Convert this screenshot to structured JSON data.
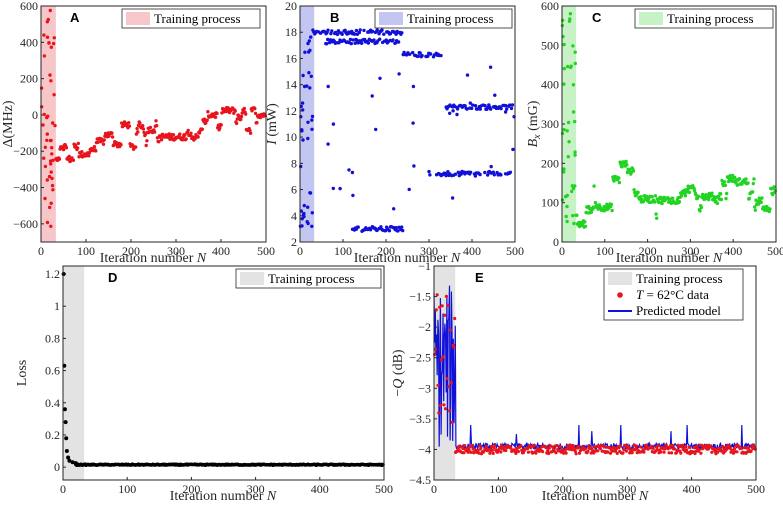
{
  "figure": {
    "panels": {
      "A": {
        "letter": "A",
        "legend": "Training process",
        "xlabel": "Iteration number N",
        "ylabel": "Δ(MHz)"
      },
      "B": {
        "letter": "B",
        "legend": "Training process",
        "xlabel": "Iteration number N",
        "ylabel": "I (mW)"
      },
      "C": {
        "letter": "C",
        "legend": "Training process",
        "xlabel": "Iteration number N",
        "ylabel": "Bx (mG)"
      },
      "D": {
        "letter": "D",
        "legend": "Training process",
        "xlabel": "Iteration number N",
        "ylabel": "Loss"
      },
      "E": {
        "letter": "E",
        "legend": "Training process",
        "legend_data": "T = 62°C data",
        "legend_model": "Predicted model",
        "xlabel": "Iteration number N",
        "ylabel": "−Q (dB)"
      }
    }
  },
  "chart_data": [
    {
      "panel": "A",
      "type": "scatter",
      "xlabel": "Iteration number N",
      "ylabel": "Δ(MHz)",
      "xlim": [
        0,
        500
      ],
      "ylim": [
        -700,
        600
      ],
      "xticks": [
        0,
        100,
        200,
        300,
        400,
        500
      ],
      "yticks": [
        -600,
        -400,
        -200,
        0,
        200,
        400,
        600
      ],
      "shade": [
        0,
        33
      ],
      "shade_label": "Training process",
      "color": "#e8141c",
      "shade_color": "#f7c6c8",
      "series": [
        {
          "name": "training",
          "x_range": [
            1,
            32
          ],
          "y_range": [
            -620,
            580
          ],
          "count": 45
        },
        {
          "name": "optimization",
          "trend": [
            [
              33,
              -250
            ],
            [
              100,
              -140
            ],
            [
              200,
              -120
            ],
            [
              300,
              -90
            ],
            [
              400,
              -40
            ],
            [
              500,
              -40
            ]
          ],
          "spread": 140,
          "count": 300
        }
      ]
    },
    {
      "panel": "B",
      "type": "scatter",
      "xlabel": "Iteration number N",
      "ylabel": "I (mW)",
      "xlim": [
        0,
        500
      ],
      "ylim": [
        2,
        20
      ],
      "xticks": [
        0,
        100,
        200,
        300,
        400,
        500
      ],
      "yticks": [
        2,
        4,
        6,
        8,
        10,
        12,
        14,
        16,
        18,
        20
      ],
      "shade": [
        0,
        33
      ],
      "shade_label": "Training process",
      "color": "#1010d8",
      "shade_color": "#c4c6f2",
      "series": [
        {
          "name": "level-18",
          "x_range": [
            30,
            240
          ],
          "y_value": 18
        },
        {
          "name": "level-17",
          "x_range": [
            60,
            230
          ],
          "y_value": 17.3
        },
        {
          "name": "level-16",
          "x_range": [
            240,
            330
          ],
          "y_value": 16.3
        },
        {
          "name": "level-12",
          "x_range": [
            340,
            500
          ],
          "y_value": 12.3
        },
        {
          "name": "level-7",
          "x_range": [
            300,
            500
          ],
          "y_value": 7.2
        },
        {
          "name": "level-3",
          "x_range": [
            120,
            240
          ],
          "y_value": 3
        }
      ]
    },
    {
      "panel": "C",
      "type": "scatter",
      "xlabel": "Iteration number N",
      "ylabel": "Bx (mG)",
      "xlim": [
        0,
        500
      ],
      "ylim": [
        0,
        600
      ],
      "xticks": [
        0,
        100,
        200,
        300,
        400,
        500
      ],
      "yticks": [
        0,
        100,
        200,
        300,
        400,
        500,
        600
      ],
      "shade": [
        0,
        33
      ],
      "shade_label": "Training process",
      "color": "#22d422",
      "shade_color": "#c6f2c6",
      "series": [
        {
          "name": "training",
          "x_range": [
            1,
            32
          ],
          "y_range": [
            30,
            600
          ],
          "count": 40
        },
        {
          "name": "optimization",
          "trend": [
            [
              33,
              60
            ],
            [
              100,
              130
            ],
            [
              150,
              200
            ],
            [
              200,
              90
            ],
            [
              300,
              110
            ],
            [
              400,
              140
            ],
            [
              500,
              100
            ]
          ],
          "spread": 70,
          "count": 300
        }
      ]
    },
    {
      "panel": "D",
      "type": "scatter",
      "xlabel": "Iteration number N",
      "ylabel": "Loss",
      "xlim": [
        0,
        500
      ],
      "ylim": [
        -0.08,
        1.25
      ],
      "xticks": [
        0,
        100,
        200,
        300,
        400,
        500
      ],
      "yticks": [
        0,
        0.2,
        0.4,
        0.6,
        0.8,
        1,
        1.2
      ],
      "shade": [
        0,
        33
      ],
      "shade_label": "Training process",
      "color": "#000000",
      "shade_color": "#e3e3e3",
      "highlight_points": [
        [
          1,
          1.2
        ],
        [
          2,
          0.63
        ],
        [
          3,
          0.36
        ],
        [
          4,
          0.28
        ],
        [
          5,
          0.18
        ],
        [
          6,
          0.1
        ],
        [
          8,
          0.06
        ],
        [
          10,
          0.04
        ],
        [
          15,
          0.03
        ],
        [
          20,
          0.025
        ]
      ],
      "plateau": {
        "x_range": [
          20,
          500
        ],
        "y_value": 0.015
      }
    },
    {
      "panel": "E",
      "type": "line",
      "xlabel": "Iteration number N",
      "ylabel": "−Q (dB)",
      "xlim": [
        0,
        500
      ],
      "ylim": [
        -4.5,
        -1
      ],
      "xticks": [
        0,
        100,
        200,
        300,
        400,
        500
      ],
      "yticks": [
        -4.5,
        -4,
        -3.5,
        -3,
        -2.5,
        -2,
        -1.5,
        -1
      ],
      "shade": [
        0,
        33
      ],
      "shade_label": "Training process",
      "shade_color": "#e3e3e3",
      "series": [
        {
          "name": "T = 62°C data",
          "style": "points",
          "color": "#e8141c",
          "training_range": [
            -3.7,
            -1.4
          ],
          "plateau": -4.0,
          "spread": 0.14
        },
        {
          "name": "Predicted model",
          "style": "line",
          "color": "#1010d8",
          "training_range": [
            -4.0,
            -1.3
          ],
          "plateau": -3.95,
          "spikes": [
            [
              57,
              -3.6
            ],
            [
              128,
              -3.75
            ],
            [
              225,
              -3.6
            ],
            [
              245,
              -3.7
            ],
            [
              290,
              -3.6
            ],
            [
              368,
              -3.7
            ],
            [
              393,
              -3.6
            ],
            [
              478,
              -3.6
            ]
          ]
        }
      ]
    }
  ]
}
